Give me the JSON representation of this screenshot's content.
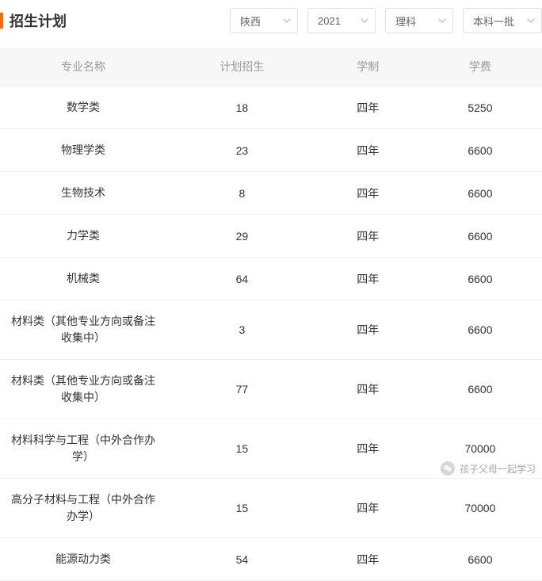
{
  "accent_color": "#ff6a00",
  "header": {
    "title": "招生计划",
    "selects": [
      {
        "label": "陕西"
      },
      {
        "label": "2021"
      },
      {
        "label": "理科"
      },
      {
        "label": "本科一批"
      }
    ]
  },
  "table": {
    "columns": [
      "专业名称",
      "计划招生",
      "学制",
      "学费"
    ],
    "rows": [
      [
        "数学类",
        "18",
        "四年",
        "5250"
      ],
      [
        "物理学类",
        "23",
        "四年",
        "6600"
      ],
      [
        "生物技术",
        "8",
        "四年",
        "6600"
      ],
      [
        "力学类",
        "29",
        "四年",
        "6600"
      ],
      [
        "机械类",
        "64",
        "四年",
        "6600"
      ],
      [
        "材料类（其他专业方向或备注收集中）",
        "3",
        "四年",
        "6600"
      ],
      [
        "材料类（其他专业方向或备注收集中）",
        "77",
        "四年",
        "6600"
      ],
      [
        "材料科学与工程（中外合作办学）",
        "15",
        "四年",
        "70000"
      ],
      [
        "高分子材料与工程（中外合作办学）",
        "15",
        "四年",
        "70000"
      ],
      [
        "能源动力类",
        "54",
        "四年",
        "6600"
      ]
    ]
  },
  "watermark": {
    "text": "孩子父母一起学习"
  }
}
